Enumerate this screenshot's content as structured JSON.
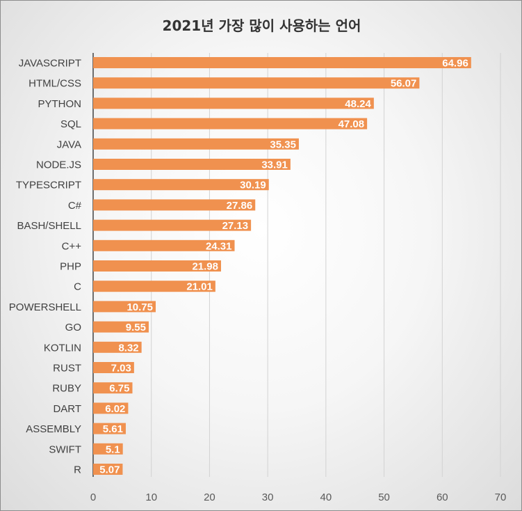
{
  "chart_data": {
    "type": "bar",
    "orientation": "horizontal",
    "title": "2021년 가장 많이 사용하는 언어",
    "categories": [
      "JAVASCRIPT",
      "HTML/CSS",
      "PYTHON",
      "SQL",
      "JAVA",
      "NODE.JS",
      "TYPESCRIPT",
      "C#",
      "BASH/SHELL",
      "C++",
      "PHP",
      "C",
      "POWERSHELL",
      "GO",
      "KOTLIN",
      "RUST",
      "RUBY",
      "DART",
      "ASSEMBLY",
      "SWIFT",
      "R"
    ],
    "values": [
      64.96,
      56.07,
      48.24,
      47.08,
      35.35,
      33.91,
      30.19,
      27.86,
      27.13,
      24.31,
      21.98,
      21.01,
      10.75,
      9.55,
      8.32,
      7.03,
      6.75,
      6.02,
      5.61,
      5.1,
      5.07
    ],
    "value_labels": [
      "64.96",
      "56.07",
      "48.24",
      "47.08",
      "35.35",
      "33.91",
      "30.19",
      "27.86",
      "27.13",
      "24.31",
      "21.98",
      "21.01",
      "10.75",
      "9.55",
      "8.32",
      "7.03",
      "6.75",
      "6.02",
      "5.61",
      "5.1",
      "5.07"
    ],
    "xlim": [
      0,
      70
    ],
    "xticks": [
      0,
      10,
      20,
      30,
      40,
      50,
      60,
      70
    ],
    "xtick_labels": [
      "0",
      "10",
      "20",
      "30",
      "40",
      "50",
      "60",
      "70"
    ],
    "grid": true,
    "bar_color": "#f0914f",
    "label_color": "#ffffff"
  }
}
